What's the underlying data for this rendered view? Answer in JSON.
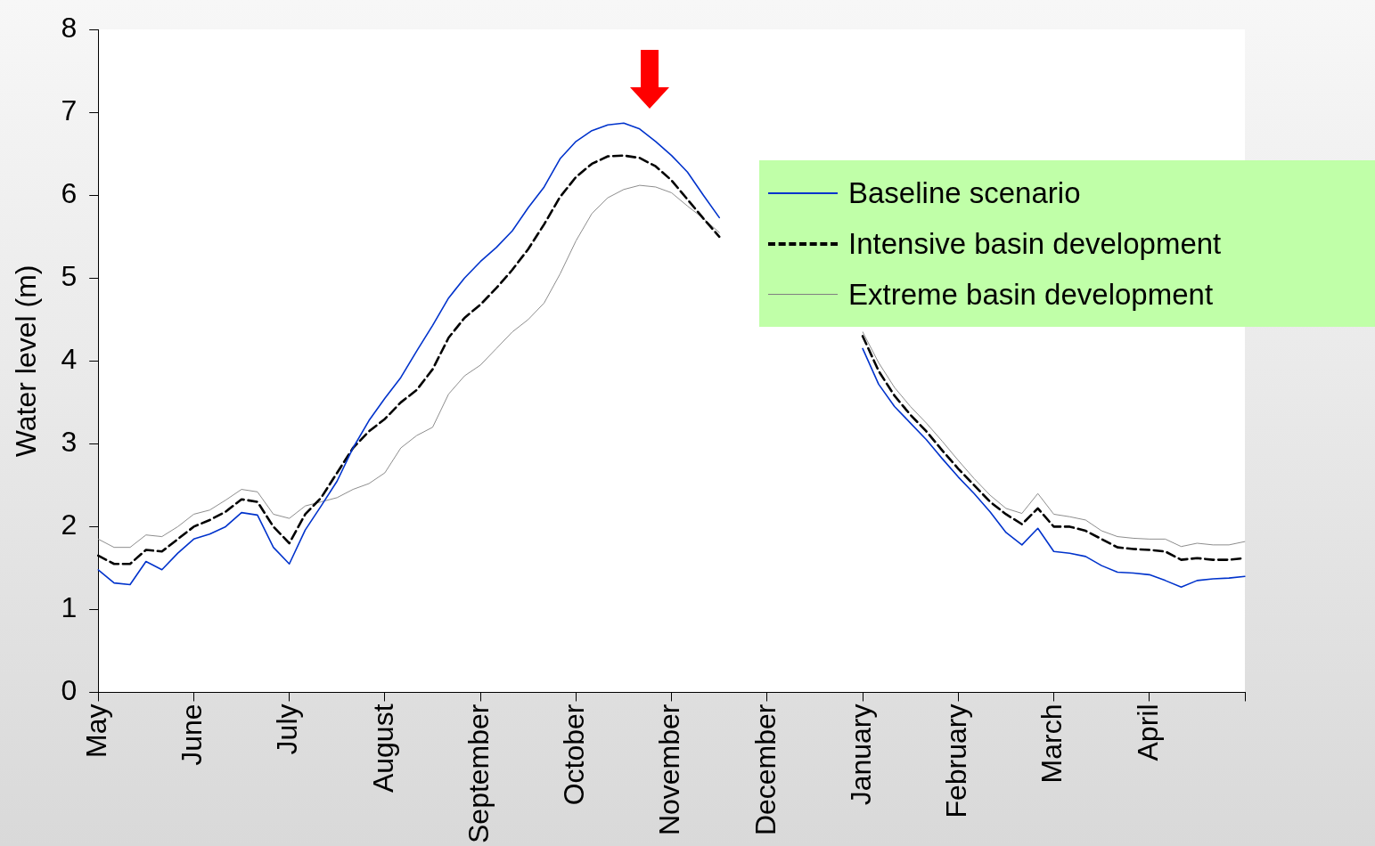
{
  "chart_data": {
    "type": "line",
    "ylabel": "Water level (m)",
    "categories": [
      "May",
      null,
      null,
      null,
      null,
      null,
      "June",
      null,
      null,
      null,
      null,
      null,
      "July",
      null,
      null,
      null,
      null,
      null,
      "August",
      null,
      null,
      null,
      null,
      null,
      "September",
      null,
      null,
      null,
      null,
      null,
      "October",
      null,
      null,
      null,
      null,
      null,
      "November",
      null,
      null,
      null,
      null,
      null,
      "December",
      null,
      null,
      null,
      null,
      null,
      "January",
      null,
      null,
      null,
      null,
      null,
      "February",
      null,
      null,
      null,
      null,
      null,
      "March",
      null,
      null,
      null,
      null,
      null,
      "April",
      null,
      null,
      null,
      null,
      null,
      null
    ],
    "ylim": [
      0,
      8
    ],
    "yticks": [
      0,
      1,
      2,
      3,
      4,
      5,
      6,
      7,
      8
    ],
    "grid": false,
    "legend": "right",
    "marker": "none",
    "series": [
      {
        "name": "Baseline scenario",
        "color": "#0033cc",
        "line_style": "solid",
        "values": [
          1.48,
          1.32,
          1.3,
          1.58,
          1.48,
          1.68,
          1.85,
          1.91,
          2.0,
          2.17,
          2.14,
          1.75,
          1.55,
          1.96,
          2.25,
          2.55,
          2.95,
          3.28,
          3.55,
          3.8,
          4.12,
          4.43,
          4.76,
          5.0,
          5.2,
          5.37,
          5.57,
          5.85,
          6.1,
          6.44,
          6.65,
          6.78,
          6.85,
          6.87,
          6.8,
          6.65,
          6.48,
          6.28,
          6.0,
          5.73,
          null,
          null,
          null,
          null,
          null,
          null,
          null,
          null,
          4.15,
          3.72,
          3.45,
          3.25,
          3.05,
          2.82,
          2.6,
          2.4,
          2.18,
          1.93,
          1.78,
          1.98,
          1.7,
          1.68,
          1.64,
          1.53,
          1.45,
          1.44,
          1.42,
          1.35,
          1.27,
          1.35,
          1.37,
          1.38,
          1.4
        ]
      },
      {
        "name": "Intensive basin development",
        "color": "#000000",
        "line_style": "dashed",
        "values": [
          1.65,
          1.55,
          1.55,
          1.72,
          1.7,
          1.85,
          2.0,
          2.08,
          2.18,
          2.33,
          2.3,
          2.0,
          1.8,
          2.15,
          2.35,
          2.65,
          2.95,
          3.15,
          3.3,
          3.5,
          3.65,
          3.9,
          4.28,
          4.52,
          4.68,
          4.88,
          5.1,
          5.35,
          5.65,
          5.98,
          6.22,
          6.38,
          6.47,
          6.48,
          6.45,
          6.35,
          6.18,
          5.95,
          5.72,
          5.5,
          null,
          null,
          null,
          null,
          null,
          null,
          null,
          null,
          4.3,
          3.88,
          3.58,
          3.35,
          3.15,
          2.92,
          2.7,
          2.5,
          2.3,
          2.15,
          2.03,
          2.22,
          2.0,
          2.0,
          1.95,
          1.85,
          1.75,
          1.73,
          1.72,
          1.7,
          1.6,
          1.62,
          1.6,
          1.6,
          1.62
        ]
      },
      {
        "name": "Extreme basin development",
        "color": "#808080",
        "line_style": "solid",
        "values": [
          1.85,
          1.75,
          1.75,
          1.9,
          1.88,
          2.0,
          2.15,
          2.2,
          2.32,
          2.45,
          2.42,
          2.15,
          2.1,
          2.25,
          2.3,
          2.35,
          2.45,
          2.52,
          2.65,
          2.95,
          3.1,
          3.2,
          3.6,
          3.82,
          3.95,
          4.15,
          4.35,
          4.5,
          4.7,
          5.05,
          5.45,
          5.78,
          5.97,
          6.07,
          6.12,
          6.1,
          6.03,
          5.87,
          5.72,
          5.55,
          null,
          null,
          null,
          null,
          null,
          null,
          null,
          null,
          4.35,
          3.98,
          3.68,
          3.45,
          3.25,
          3.03,
          2.8,
          2.58,
          2.38,
          2.22,
          2.16,
          2.4,
          2.15,
          2.12,
          2.08,
          1.95,
          1.88,
          1.86,
          1.85,
          1.85,
          1.76,
          1.8,
          1.78,
          1.78,
          1.82
        ]
      }
    ]
  }
}
